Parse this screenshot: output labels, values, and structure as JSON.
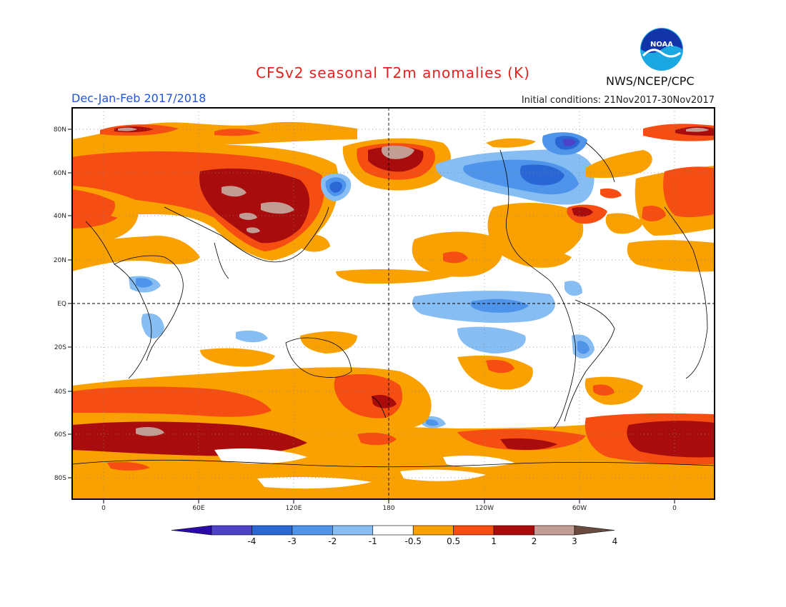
{
  "header": {
    "title": "CFSv2 seasonal T2m anomalies (K)",
    "period": "Dec-Jan-Feb 2017/2018",
    "initial_conditions": "Initial conditions: 21Nov2017-30Nov2017",
    "agency": "NWS/NCEP/CPC",
    "logo_text": "NOAA"
  },
  "axes": {
    "lat_labels": [
      "80N",
      "60N",
      "40N",
      "20N",
      "EQ",
      "20S",
      "40S",
      "60S",
      "80S"
    ],
    "lon_labels": [
      "0",
      "60E",
      "120E",
      "180",
      "120W",
      "60W",
      "0"
    ]
  },
  "colorbar": {
    "labels": [
      "-4",
      "-3",
      "-2",
      "-1",
      "-0.5",
      "0.5",
      "1",
      "2",
      "3",
      "4"
    ],
    "colors": [
      "#2a0aa8",
      "#4d42c8",
      "#2a66d4",
      "#4d94ea",
      "#86bdf3",
      "#ffffff",
      "#f9a100",
      "#f64d12",
      "#a80c0c",
      "#c19d94",
      "#6b4b3f"
    ]
  },
  "palette": {
    "orange": "#f9a100",
    "red": "#f64d12",
    "darkred": "#a80c0c",
    "tan": "#c19d94",
    "blue1": "#86bdf3",
    "blue2": "#4d94ea",
    "blue3": "#2a66d4",
    "blue4": "#4d42c8"
  }
}
